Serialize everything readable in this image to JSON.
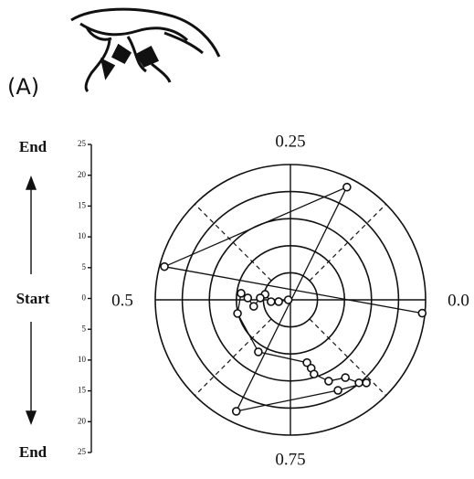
{
  "chart_data": {
    "type": "polar",
    "panel_label": "(A)",
    "axis_labels": {
      "top": "End",
      "middle": "Start",
      "bottom": "End"
    },
    "ylim": [
      -25,
      25
    ],
    "yticks": [
      {
        "value": -25,
        "label": "25"
      },
      {
        "value": -20,
        "label": "20"
      },
      {
        "value": -15,
        "label": "15"
      },
      {
        "value": -10,
        "label": "10"
      },
      {
        "value": -5,
        "label": "5"
      },
      0,
      5,
      10,
      15,
      20,
      25
    ],
    "rlim": [
      0,
      25
    ],
    "rticks": [
      5,
      10,
      15,
      20,
      25
    ],
    "angle_ticks": [
      {
        "value": 0,
        "label": "0.0"
      },
      0.25,
      {
        "value": 0.5,
        "label": "0.5"
      },
      0.75
    ],
    "phase": [
      0.5,
      0.524,
      0.515,
      0.466,
      0.49,
      0.528,
      0.493,
      0.479,
      0.54,
      0.662,
      0.791,
      0.797,
      0.799,
      0.82,
      0.848,
      0.86,
      0.868,
      0.827,
      0.678,
      0.176,
      0.459,
      0.984
    ],
    "radius": [
      0.4,
      2.2,
      3.6,
      4.8,
      5.6,
      6.9,
      7.9,
      9.2,
      10.1,
      11.3,
      12.0,
      13.2,
      14.4,
      16.6,
      17.6,
      19.9,
      20.8,
      18.9,
      22.9,
      23.3,
      24.1,
      24.5
    ],
    "color": "#111111"
  }
}
